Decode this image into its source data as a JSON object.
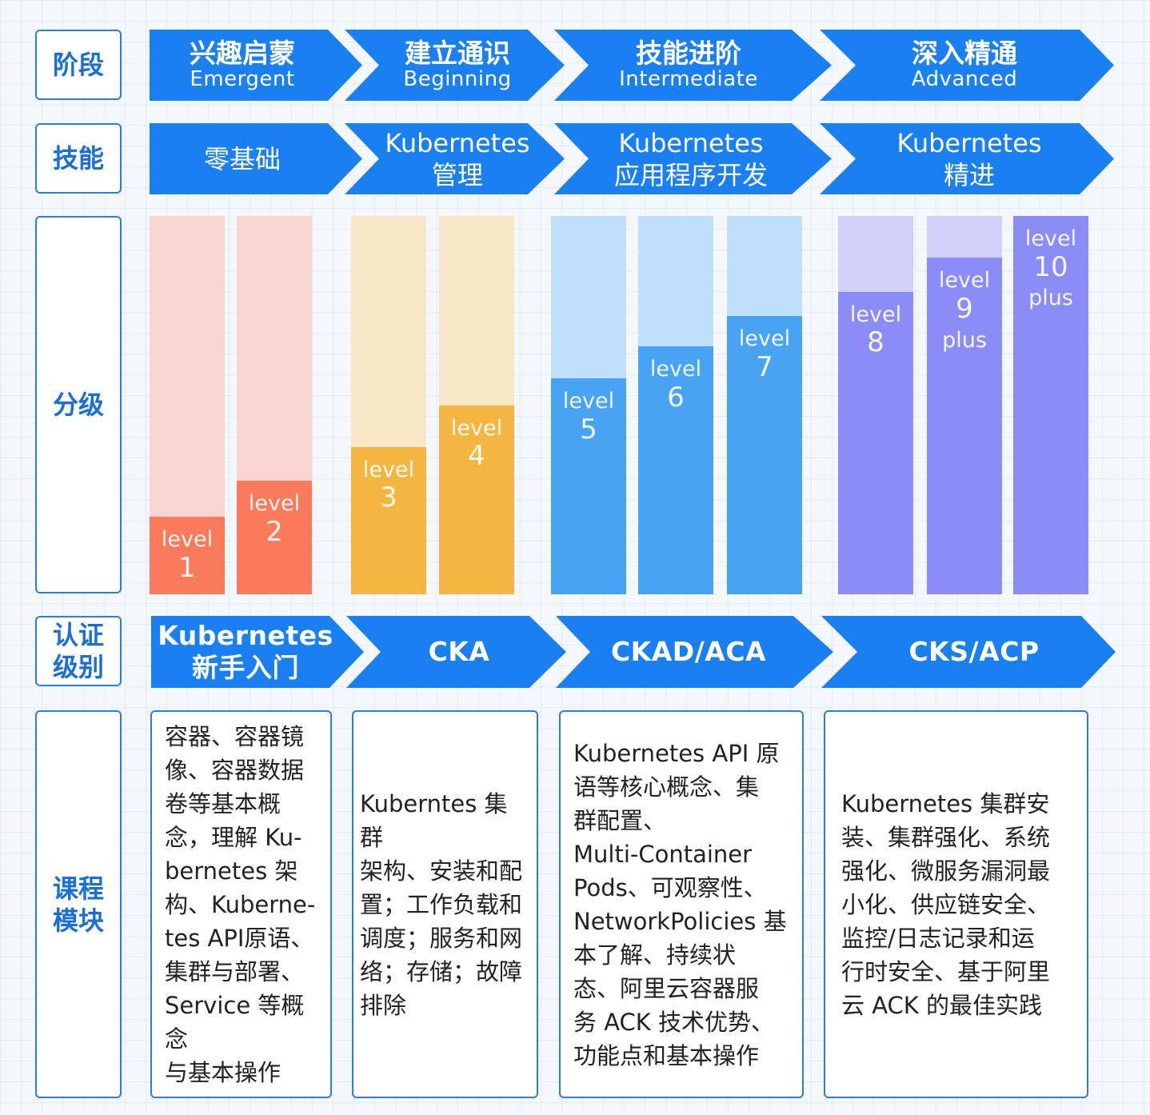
{
  "row_labels": {
    "stage": "阶段",
    "skill": "技能",
    "grade": "分级",
    "cert": "认证\n级别",
    "course": "课程\n模块"
  },
  "stages": [
    {
      "cn": "兴趣启蒙",
      "en": "Emergent"
    },
    {
      "cn": "建立通识",
      "en": "Beginning"
    },
    {
      "cn": "技能进阶",
      "en": "Intermediate"
    },
    {
      "cn": "深入精通",
      "en": "Advanced"
    }
  ],
  "skills": [
    {
      "line1": "零基础",
      "line2": ""
    },
    {
      "line1": "Kubernetes",
      "line2": "管理"
    },
    {
      "line1": "Kubernetes",
      "line2": "应用程序开发"
    },
    {
      "line1": "Kubernetes",
      "line2": "精进"
    }
  ],
  "certs": [
    {
      "line1": "Kubernetes",
      "line2": "新手入门"
    },
    {
      "line1": "CKA",
      "line2": ""
    },
    {
      "line1": "CKAD/ACA",
      "line2": ""
    },
    {
      "line1": "CKS/ACP",
      "line2": ""
    }
  ],
  "levels": [
    {
      "word": "level",
      "num": "1",
      "plus": "",
      "fill_fraction": 0.205
    },
    {
      "word": "level",
      "num": "2",
      "plus": "",
      "fill_fraction": 0.3
    },
    {
      "word": "level",
      "num": "3",
      "plus": "",
      "fill_fraction": 0.39
    },
    {
      "word": "level",
      "num": "4",
      "plus": "",
      "fill_fraction": 0.5
    },
    {
      "word": "level",
      "num": "5",
      "plus": "",
      "fill_fraction": 0.57
    },
    {
      "word": "level",
      "num": "6",
      "plus": "",
      "fill_fraction": 0.655
    },
    {
      "word": "level",
      "num": "7",
      "plus": "",
      "fill_fraction": 0.735
    },
    {
      "word": "level",
      "num": "8",
      "plus": "",
      "fill_fraction": 0.8
    },
    {
      "word": "level",
      "num": "9",
      "plus": "plus",
      "fill_fraction": 0.89
    },
    {
      "word": "level",
      "num": "10",
      "plus": "plus",
      "fill_fraction": 1.0
    }
  ],
  "colors": {
    "chevron": "#1a7ff0",
    "level_1_2": "#fa7a5c",
    "level_1_2_bg": "#fad6d2",
    "level_3_4": "#f5b541",
    "level_3_4_bg": "#f8e6c6",
    "level_5_7": "#48a3f5",
    "level_5_7_bg": "#c0dffb",
    "level_8_10": "#8b8cf8",
    "level_8_10_bg": "#d0d0fb"
  },
  "courses": [
    {
      "lines": [
        "容器、容器镜",
        "像、容器数据",
        "卷等基本概",
        "念，理解 Ku-",
        "bernetes 架",
        "构、Kuberne-",
        "tes API原语、",
        "集群与部署、",
        "Service 等概念",
        "与基本操作"
      ]
    },
    {
      "lines": [
        "Kuberntes 集群",
        "架构、安装和配",
        "置；工作负载和",
        "调度；服务和网",
        "络；存储；故障",
        "排除"
      ]
    },
    {
      "lines": [
        "Kubernetes API 原",
        "语等核心概念、集",
        "群配置、",
        "Multi-Container",
        "Pods、可观察性、",
        "NetworkPolicies 基",
        "本了解、持续状",
        "态、阿里云容器服",
        "务 ACK 技术优势、",
        "功能点和基本操作"
      ]
    },
    {
      "lines": [
        "Kubernetes 集群安",
        "装、集群强化、系统",
        "强化、微服务漏洞最",
        "小化、供应链安全、",
        "监控/日志记录和运",
        "行时安全、基于阿里",
        "云 ACK 的最佳实践"
      ]
    }
  ]
}
